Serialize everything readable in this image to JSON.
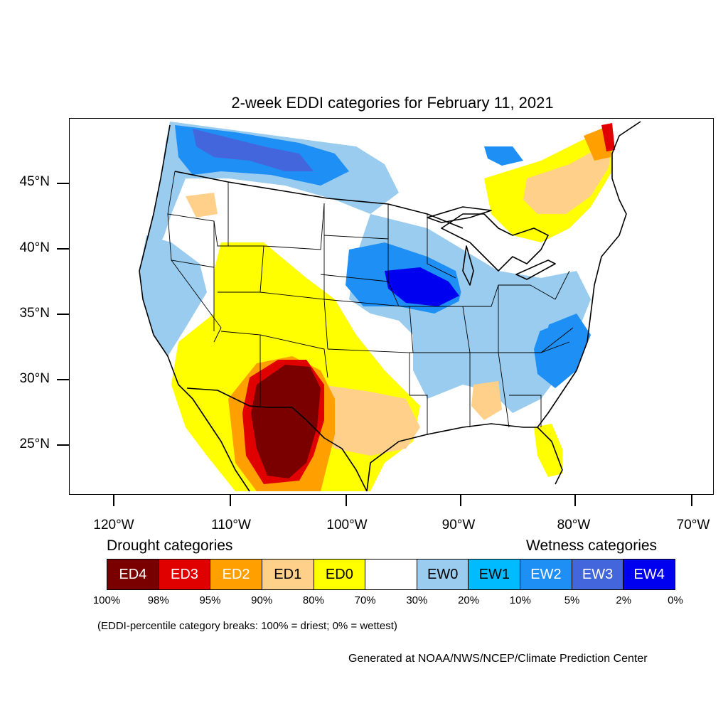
{
  "title": "2-week EDDI categories for February 11, 2021",
  "map": {
    "lat_labels": [
      "45°N",
      "40°N",
      "35°N",
      "30°N",
      "25°N"
    ],
    "lon_labels": [
      "120°W",
      "110°W",
      "100°W",
      "90°W",
      "80°W",
      "70°W"
    ]
  },
  "legend": {
    "drought_heading": "Drought categories",
    "wetness_heading": "Wetness categories",
    "categories": [
      {
        "label": "ED4",
        "color": "#7a0000",
        "text_color": "#ffffff"
      },
      {
        "label": "ED3",
        "color": "#e00000",
        "text_color": "#ffffff"
      },
      {
        "label": "ED2",
        "color": "#ff9f00",
        "text_color": "#ffffff"
      },
      {
        "label": "ED1",
        "color": "#ffd08a",
        "text_color": "#000000"
      },
      {
        "label": "ED0",
        "color": "#ffff00",
        "text_color": "#000000"
      },
      {
        "label": "",
        "color": "#ffffff",
        "text_color": "#000000"
      },
      {
        "label": "EW0",
        "color": "#99ccee",
        "text_color": "#000000"
      },
      {
        "label": "EW1",
        "color": "#00bbff",
        "text_color": "#000000"
      },
      {
        "label": "EW2",
        "color": "#1e8ff5",
        "text_color": "#ffffff"
      },
      {
        "label": "EW3",
        "color": "#4466dd",
        "text_color": "#ffffff"
      },
      {
        "label": "EW4",
        "color": "#0000f0",
        "text_color": "#ffffff"
      }
    ],
    "breaks": [
      "100%",
      "98%",
      "95%",
      "90%",
      "80%",
      "70%",
      "30%",
      "20%",
      "10%",
      "5%",
      "2%",
      "0%"
    ]
  },
  "note": "(EDDI-percentile category breaks: 100% = driest; 0% = wettest)",
  "credit": "Generated at NOAA/NWS/NCEP/Climate Prediction Center"
}
